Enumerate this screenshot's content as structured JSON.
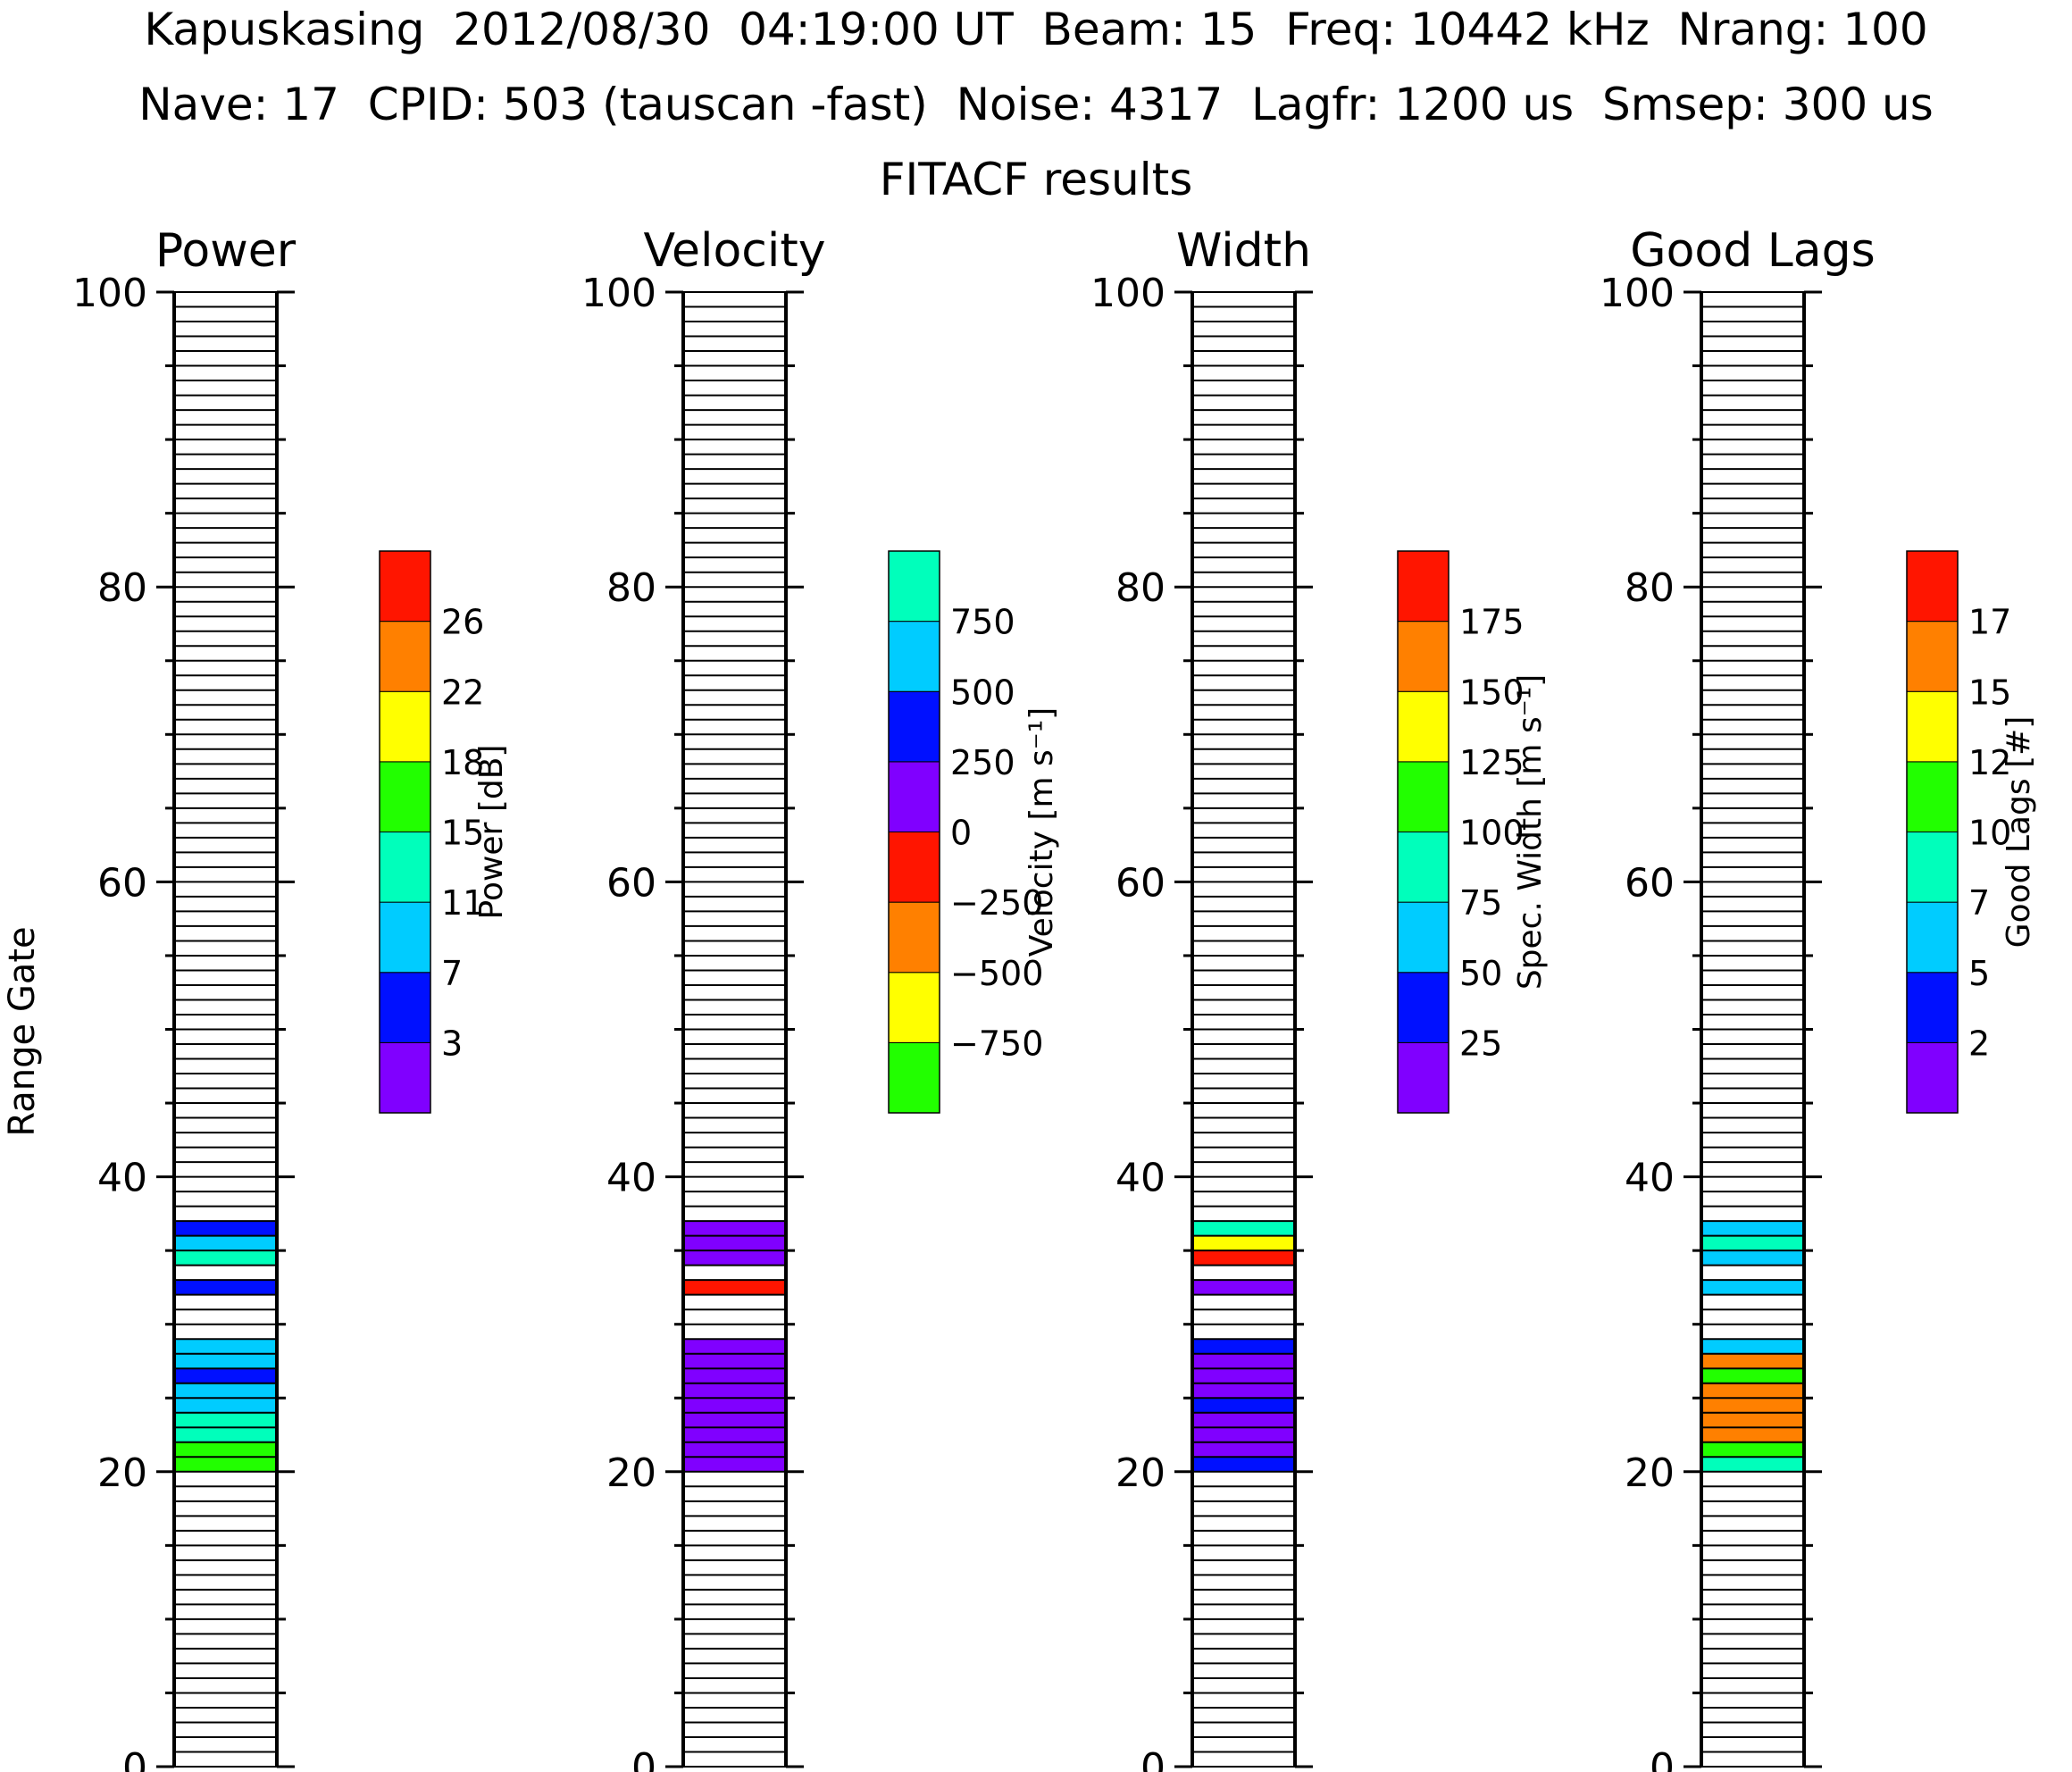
{
  "header": {
    "line1": "Kapuskasing  2012/08/30  04:19:00 UT  Beam: 15  Freq: 10442 kHz  Nrang: 100",
    "line2": "Nave: 17  CPID: 503 (tauscan -fast)  Noise: 4317  Lagfr: 1200 us  Smsep: 300 us",
    "line3": "FITACF results"
  },
  "colors": {
    "purple": "#8000FF",
    "blue": "#0010FF",
    "sky": "#00CCFF",
    "teal": "#00FFBB",
    "green": "#22FF00",
    "yellow": "#FFFF00",
    "orange": "#FF8000",
    "red": "#FF1500"
  },
  "chart_data": [
    {
      "type": "heatmap",
      "title": "Power",
      "ylabel": "Range Gate",
      "ylim": [
        0,
        100
      ],
      "yticks": [
        "0",
        "20",
        "40",
        "60",
        "80",
        "100"
      ],
      "colorbar": {
        "label": "Power [dB]",
        "colors": [
          "#8000FF",
          "#0010FF",
          "#00CCFF",
          "#00FFBB",
          "#22FF00",
          "#FFFF00",
          "#FF8000",
          "#FF1500"
        ],
        "tick_labels": [
          "3",
          "7",
          "11",
          "15",
          "18",
          "22",
          "26"
        ]
      },
      "gates": [
        {
          "gate": 20,
          "color": "#22FF00"
        },
        {
          "gate": 21,
          "color": "#22FF00"
        },
        {
          "gate": 22,
          "color": "#00FFBB"
        },
        {
          "gate": 23,
          "color": "#00FFBB"
        },
        {
          "gate": 24,
          "color": "#00CCFF"
        },
        {
          "gate": 25,
          "color": "#00CCFF"
        },
        {
          "gate": 26,
          "color": "#0010FF"
        },
        {
          "gate": 27,
          "color": "#00CCFF"
        },
        {
          "gate": 28,
          "color": "#00CCFF"
        },
        {
          "gate": 32,
          "color": "#0010FF"
        },
        {
          "gate": 34,
          "color": "#00FFBB"
        },
        {
          "gate": 35,
          "color": "#00CCFF"
        },
        {
          "gate": 36,
          "color": "#0010FF"
        }
      ]
    },
    {
      "type": "heatmap",
      "title": "Velocity",
      "ylim": [
        0,
        100
      ],
      "yticks": [
        "0",
        "20",
        "40",
        "60",
        "80",
        "100"
      ],
      "colorbar": {
        "label": "Velocity [m s⁻¹]",
        "colors": [
          "#22FF00",
          "#FFFF00",
          "#FF8000",
          "#FF1500",
          "#8000FF",
          "#0010FF",
          "#00CCFF",
          "#00FFBB"
        ],
        "tick_labels": [
          "−750",
          "−500",
          "−250",
          "0",
          "250",
          "500",
          "750"
        ]
      },
      "gates": [
        {
          "gate": 20,
          "color": "#8000FF"
        },
        {
          "gate": 21,
          "color": "#8000FF"
        },
        {
          "gate": 22,
          "color": "#8000FF"
        },
        {
          "gate": 23,
          "color": "#8000FF"
        },
        {
          "gate": 24,
          "color": "#8000FF"
        },
        {
          "gate": 25,
          "color": "#8000FF"
        },
        {
          "gate": 26,
          "color": "#8000FF"
        },
        {
          "gate": 27,
          "color": "#8000FF"
        },
        {
          "gate": 28,
          "color": "#8000FF"
        },
        {
          "gate": 32,
          "color": "#FF1500"
        },
        {
          "gate": 34,
          "color": "#8000FF"
        },
        {
          "gate": 35,
          "color": "#8000FF"
        },
        {
          "gate": 36,
          "color": "#8000FF"
        }
      ]
    },
    {
      "type": "heatmap",
      "title": "Width",
      "ylim": [
        0,
        100
      ],
      "yticks": [
        "0",
        "20",
        "40",
        "60",
        "80",
        "100"
      ],
      "colorbar": {
        "label": "Spec. Width [m s⁻¹]",
        "colors": [
          "#8000FF",
          "#0010FF",
          "#00CCFF",
          "#00FFBB",
          "#22FF00",
          "#FFFF00",
          "#FF8000",
          "#FF1500"
        ],
        "tick_labels": [
          "25",
          "50",
          "75",
          "100",
          "125",
          "150",
          "175"
        ]
      },
      "gates": [
        {
          "gate": 20,
          "color": "#0010FF"
        },
        {
          "gate": 21,
          "color": "#8000FF"
        },
        {
          "gate": 22,
          "color": "#8000FF"
        },
        {
          "gate": 23,
          "color": "#8000FF"
        },
        {
          "gate": 24,
          "color": "#0010FF"
        },
        {
          "gate": 25,
          "color": "#8000FF"
        },
        {
          "gate": 26,
          "color": "#8000FF"
        },
        {
          "gate": 27,
          "color": "#8000FF"
        },
        {
          "gate": 28,
          "color": "#0010FF"
        },
        {
          "gate": 32,
          "color": "#8000FF"
        },
        {
          "gate": 34,
          "color": "#FF1500"
        },
        {
          "gate": 35,
          "color": "#FFFF00"
        },
        {
          "gate": 36,
          "color": "#00FFBB"
        }
      ]
    },
    {
      "type": "heatmap",
      "title": "Good Lags",
      "ylim": [
        0,
        100
      ],
      "yticks": [
        "0",
        "20",
        "40",
        "60",
        "80",
        "100"
      ],
      "colorbar": {
        "label": "Good Lags [#]",
        "colors": [
          "#8000FF",
          "#0010FF",
          "#00CCFF",
          "#00FFBB",
          "#22FF00",
          "#FFFF00",
          "#FF8000",
          "#FF1500"
        ],
        "tick_labels": [
          "2",
          "5",
          "7",
          "10",
          "12",
          "15",
          "17"
        ]
      },
      "gates": [
        {
          "gate": 20,
          "color": "#00FFBB"
        },
        {
          "gate": 21,
          "color": "#22FF00"
        },
        {
          "gate": 22,
          "color": "#FF8000"
        },
        {
          "gate": 23,
          "color": "#FF8000"
        },
        {
          "gate": 24,
          "color": "#FF8000"
        },
        {
          "gate": 25,
          "color": "#FF8000"
        },
        {
          "gate": 26,
          "color": "#22FF00"
        },
        {
          "gate": 27,
          "color": "#FF8000"
        },
        {
          "gate": 28,
          "color": "#00CCFF"
        },
        {
          "gate": 32,
          "color": "#00CCFF"
        },
        {
          "gate": 34,
          "color": "#00CCFF"
        },
        {
          "gate": 35,
          "color": "#00FFBB"
        },
        {
          "gate": 36,
          "color": "#00CCFF"
        }
      ]
    }
  ]
}
